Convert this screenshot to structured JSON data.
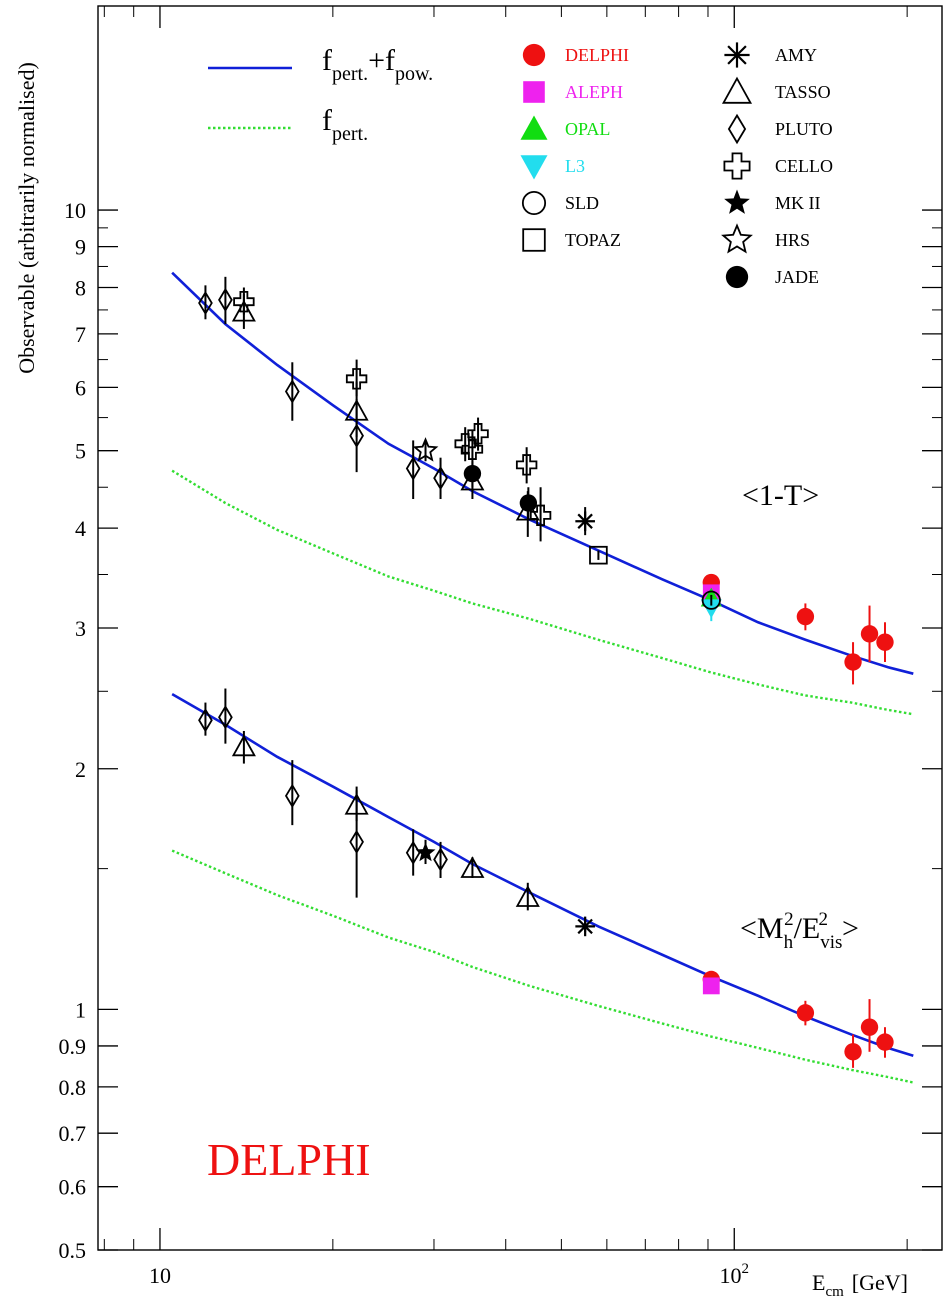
{
  "chart_data": {
    "type": "scatter",
    "x_scale": "log",
    "y_scale": "log",
    "xlim": [
      7.8,
      230
    ],
    "ylim": [
      0.5,
      18
    ],
    "xlabel_main": "E",
    "xlabel_sub": "cm",
    "xlabel_unit": "[GeV]",
    "ylabel": "Observable (arbitrarily normalised)",
    "x_ticks": [
      {
        "value": 10,
        "base": "10",
        "exp": ""
      },
      {
        "value": 100,
        "base": "10",
        "exp": "2"
      }
    ],
    "y_ticks": [
      {
        "value": 0.5,
        "label": "0.5"
      },
      {
        "value": 0.6,
        "label": "0.6"
      },
      {
        "value": 0.7,
        "label": "0.7"
      },
      {
        "value": 0.8,
        "label": "0.8"
      },
      {
        "value": 0.9,
        "label": "0.9"
      },
      {
        "value": 1,
        "label": "1"
      },
      {
        "value": 2,
        "label": "2"
      },
      {
        "value": 3,
        "label": "3"
      },
      {
        "value": 4,
        "label": "4"
      },
      {
        "value": 5,
        "label": "5"
      },
      {
        "value": 6,
        "label": "6"
      },
      {
        "value": 7,
        "label": "7"
      },
      {
        "value": 8,
        "label": "8"
      },
      {
        "value": 9,
        "label": "9"
      },
      {
        "value": 10,
        "label": "10"
      }
    ],
    "watermark": "DELPHI",
    "legend_lines": [
      {
        "key": "fit",
        "color": "#1020d8",
        "style": "solid",
        "main1": "f",
        "sub1": "pert.",
        "plus": "+",
        "main2": "f",
        "sub2": "pow."
      },
      {
        "key": "pert",
        "color": "#33dd33",
        "style": "dotted",
        "main1": "f",
        "sub1": "pert."
      }
    ],
    "legend_markers": [
      {
        "label": "DELPHI",
        "marker": "circle-filled",
        "color": "#ee1111",
        "text_color": "#ee1111"
      },
      {
        "label": "ALEPH",
        "marker": "square-filled",
        "color": "#ee22ee",
        "text_color": "#ee22ee"
      },
      {
        "label": "OPAL",
        "marker": "triangle-up-filled",
        "color": "#11dd11",
        "text_color": "#11dd11"
      },
      {
        "label": "L3",
        "marker": "triangle-down-filled",
        "color": "#22ddee",
        "text_color": "#22ddee"
      },
      {
        "label": "SLD",
        "marker": "circle-open",
        "color": "#000000",
        "text_color": "#000000"
      },
      {
        "label": "TOPAZ",
        "marker": "square-open",
        "color": "#000000",
        "text_color": "#000000"
      },
      {
        "label": "AMY",
        "marker": "asterisk",
        "color": "#000000",
        "text_color": "#000000"
      },
      {
        "label": "TASSO",
        "marker": "triangle-up-open",
        "color": "#000000",
        "text_color": "#000000"
      },
      {
        "label": "PLUTO",
        "marker": "diamond-open",
        "color": "#000000",
        "text_color": "#000000"
      },
      {
        "label": "CELLO",
        "marker": "cross-open",
        "color": "#000000",
        "text_color": "#000000"
      },
      {
        "label": "MK II",
        "marker": "star-filled",
        "color": "#000000",
        "text_color": "#000000"
      },
      {
        "label": "HRS",
        "marker": "star-open",
        "color": "#000000",
        "text_color": "#000000"
      },
      {
        "label": "JADE",
        "marker": "circle-filled",
        "color": "#000000",
        "text_color": "#000000"
      }
    ],
    "observables": [
      {
        "key": "thrust",
        "label": "<1-T>",
        "fit_curve": {
          "x": [
            10.5,
            13,
            16,
            20,
            25,
            30,
            35,
            44,
            58,
            75,
            91,
            110,
            133,
            160,
            185,
            205
          ],
          "y": [
            8.35,
            7.2,
            6.4,
            5.7,
            5.1,
            4.75,
            4.45,
            4.1,
            3.75,
            3.45,
            3.25,
            3.05,
            2.9,
            2.77,
            2.68,
            2.63
          ]
        },
        "pert_curve": {
          "x": [
            10.5,
            13,
            16,
            20,
            25,
            30,
            35,
            44,
            58,
            75,
            91,
            110,
            133,
            160,
            185,
            205
          ],
          "y": [
            4.72,
            4.3,
            3.98,
            3.72,
            3.48,
            3.34,
            3.22,
            3.08,
            2.9,
            2.75,
            2.64,
            2.55,
            2.47,
            2.42,
            2.37,
            2.34
          ]
        },
        "points": [
          {
            "exp": "PLUTO",
            "x": 12.0,
            "y": 7.65,
            "lo": 7.3,
            "hi": 8.05
          },
          {
            "exp": "PLUTO",
            "x": 13.0,
            "y": 7.72,
            "lo": 7.2,
            "hi": 8.25
          },
          {
            "exp": "TASSO",
            "x": 14.0,
            "y": 7.45,
            "lo": 7.1,
            "hi": 7.85
          },
          {
            "exp": "CELLO",
            "x": 14.0,
            "y": 7.68,
            "lo": 7.4,
            "hi": 8.0
          },
          {
            "exp": "PLUTO",
            "x": 17.0,
            "y": 5.93,
            "lo": 5.45,
            "hi": 6.45
          },
          {
            "exp": "TASSO",
            "x": 22.0,
            "y": 5.6,
            "lo": 5.2,
            "hi": 6.1
          },
          {
            "exp": "CELLO",
            "x": 22.0,
            "y": 6.15,
            "lo": 5.85,
            "hi": 6.5
          },
          {
            "exp": "PLUTO",
            "x": 22.0,
            "y": 5.22,
            "lo": 4.7,
            "hi": 5.8
          },
          {
            "exp": "PLUTO",
            "x": 27.6,
            "y": 4.75,
            "lo": 4.35,
            "hi": 5.15
          },
          {
            "exp": "HRS",
            "x": 29.0,
            "y": 5.0,
            "lo": 4.85,
            "hi": 5.15
          },
          {
            "exp": "PLUTO",
            "x": 30.8,
            "y": 4.62,
            "lo": 4.35,
            "hi": 4.9
          },
          {
            "exp": "CELLO",
            "x": 34.0,
            "y": 5.1,
            "lo": 4.85,
            "hi": 5.35
          },
          {
            "exp": "CELLO",
            "x": 35.0,
            "y": 5.02,
            "lo": 4.75,
            "hi": 5.3
          },
          {
            "exp": "CELLO",
            "x": 35.8,
            "y": 5.25,
            "lo": 5.0,
            "hi": 5.5
          },
          {
            "exp": "TASSO",
            "x": 35.0,
            "y": 4.58,
            "lo": 4.35,
            "hi": 4.8
          },
          {
            "exp": "JADE",
            "x": 35.0,
            "y": 4.68,
            "lo": 4.5,
            "hi": 4.85
          },
          {
            "exp": "CELLO",
            "x": 43.5,
            "y": 4.8,
            "lo": 4.55,
            "hi": 5.05
          },
          {
            "exp": "TASSO",
            "x": 43.7,
            "y": 4.2,
            "lo": 3.9,
            "hi": 4.45
          },
          {
            "exp": "JADE",
            "x": 43.8,
            "y": 4.3,
            "lo": 4.1,
            "hi": 4.5
          },
          {
            "exp": "CELLO",
            "x": 46.0,
            "y": 4.15,
            "lo": 3.85,
            "hi": 4.5
          },
          {
            "exp": "AMY",
            "x": 55.0,
            "y": 4.08,
            "lo": 3.92,
            "hi": 4.25
          },
          {
            "exp": "TOPAZ",
            "x": 58.0,
            "y": 3.7,
            "lo": 3.65,
            "hi": 3.75
          },
          {
            "exp": "DELPHI",
            "x": 91.2,
            "y": 3.42,
            "lo": 3.39,
            "hi": 3.45
          },
          {
            "exp": "ALEPH",
            "x": 91.2,
            "y": 3.32,
            "lo": 3.3,
            "hi": 3.34
          },
          {
            "exp": "OPAL",
            "x": 91.2,
            "y": 3.27,
            "lo": 3.25,
            "hi": 3.29
          },
          {
            "exp": "L3",
            "x": 91.2,
            "y": 3.18,
            "lo": 3.06,
            "hi": 3.28
          },
          {
            "exp": "SLD",
            "x": 91.2,
            "y": 3.25,
            "lo": 3.2,
            "hi": 3.3
          },
          {
            "exp": "DELPHI",
            "x": 133.0,
            "y": 3.1,
            "lo": 2.98,
            "hi": 3.22
          },
          {
            "exp": "DELPHI",
            "x": 161.0,
            "y": 2.72,
            "lo": 2.55,
            "hi": 2.88
          },
          {
            "exp": "DELPHI",
            "x": 172.0,
            "y": 2.95,
            "lo": 2.72,
            "hi": 3.2
          },
          {
            "exp": "DELPHI",
            "x": 183.0,
            "y": 2.88,
            "lo": 2.72,
            "hi": 3.05
          }
        ]
      },
      {
        "key": "heavy_jet_mass",
        "label_main": "<M",
        "label_sub1": "h",
        "label_sup1": "2",
        "label_mid": "/E",
        "label_sub2": "vis",
        "label_sup2": "2",
        "label_end": ">",
        "fit_curve": {
          "x": [
            10.5,
            13,
            16,
            20,
            25,
            30,
            35,
            44,
            58,
            75,
            91,
            110,
            133,
            160,
            185,
            205
          ],
          "y": [
            2.48,
            2.27,
            2.07,
            1.9,
            1.74,
            1.62,
            1.52,
            1.4,
            1.27,
            1.17,
            1.1,
            1.04,
            0.98,
            0.93,
            0.895,
            0.875
          ]
        },
        "pert_curve": {
          "x": [
            10.5,
            13,
            16,
            20,
            25,
            30,
            35,
            44,
            58,
            75,
            91,
            110,
            133,
            160,
            185,
            205
          ],
          "y": [
            1.58,
            1.48,
            1.39,
            1.31,
            1.23,
            1.18,
            1.13,
            1.07,
            1.01,
            0.96,
            0.925,
            0.895,
            0.865,
            0.84,
            0.823,
            0.81
          ]
        },
        "points": [
          {
            "exp": "PLUTO",
            "x": 12.0,
            "y": 2.3,
            "lo": 2.2,
            "hi": 2.42
          },
          {
            "exp": "PLUTO",
            "x": 13.0,
            "y": 2.32,
            "lo": 2.15,
            "hi": 2.52
          },
          {
            "exp": "TASSO",
            "x": 14.0,
            "y": 2.13,
            "lo": 2.03,
            "hi": 2.23
          },
          {
            "exp": "PLUTO",
            "x": 17.0,
            "y": 1.85,
            "lo": 1.7,
            "hi": 2.05
          },
          {
            "exp": "TASSO",
            "x": 22.0,
            "y": 1.8,
            "lo": 1.72,
            "hi": 1.9
          },
          {
            "exp": "PLUTO",
            "x": 22.0,
            "y": 1.62,
            "lo": 1.38,
            "hi": 1.88
          },
          {
            "exp": "PLUTO",
            "x": 27.6,
            "y": 1.57,
            "lo": 1.47,
            "hi": 1.68
          },
          {
            "exp": "MK II",
            "x": 29.0,
            "y": 1.57,
            "lo": 1.52,
            "hi": 1.63
          },
          {
            "exp": "PLUTO",
            "x": 30.8,
            "y": 1.54,
            "lo": 1.46,
            "hi": 1.62
          },
          {
            "exp": "TASSO",
            "x": 35.0,
            "y": 1.5,
            "lo": 1.46,
            "hi": 1.55
          },
          {
            "exp": "TASSO",
            "x": 43.7,
            "y": 1.38,
            "lo": 1.33,
            "hi": 1.44
          },
          {
            "exp": "AMY",
            "x": 55.0,
            "y": 1.27,
            "lo": 1.25,
            "hi": 1.3
          },
          {
            "exp": "DELPHI",
            "x": 91.2,
            "y": 1.09,
            "lo": 1.08,
            "hi": 1.1
          },
          {
            "exp": "ALEPH",
            "x": 91.2,
            "y": 1.07,
            "lo": 1.06,
            "hi": 1.08
          },
          {
            "exp": "DELPHI",
            "x": 133.0,
            "y": 0.99,
            "lo": 0.955,
            "hi": 1.025
          },
          {
            "exp": "DELPHI",
            "x": 161.0,
            "y": 0.885,
            "lo": 0.845,
            "hi": 0.93
          },
          {
            "exp": "DELPHI",
            "x": 172.0,
            "y": 0.95,
            "lo": 0.885,
            "hi": 1.03
          },
          {
            "exp": "DELPHI",
            "x": 183.0,
            "y": 0.91,
            "lo": 0.87,
            "hi": 0.95
          }
        ]
      }
    ]
  }
}
